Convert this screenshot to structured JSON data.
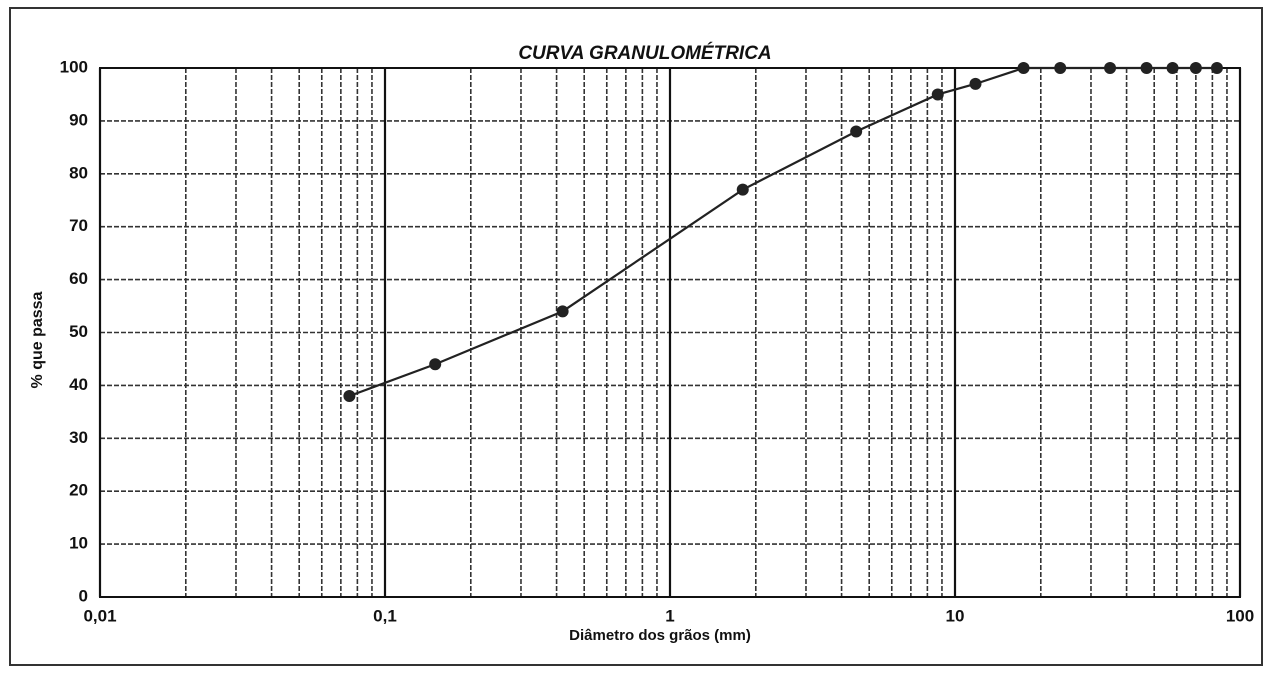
{
  "chart_data": {
    "type": "line",
    "title": "CURVA GRANULOMÉTRICA",
    "xlabel": "Diâmetro dos grãos (mm)",
    "ylabel": "% que passa",
    "x": [
      0.075,
      0.15,
      0.42,
      1.8,
      4.5,
      8.7,
      11.8,
      17.4,
      23.4,
      35,
      47,
      58,
      70,
      83
    ],
    "values": [
      38,
      44,
      54,
      77,
      88,
      95,
      97,
      100,
      100,
      100,
      100,
      100,
      100,
      100
    ],
    "color": "#222222",
    "xscale": "log",
    "grid": true,
    "xlim": [
      0.01,
      100
    ],
    "xticks": [
      {
        "value": 0.01,
        "label": "0,01"
      },
      {
        "value": 0.1,
        "label": "0,1"
      },
      1,
      10,
      100
    ],
    "ylim": [
      0,
      100
    ],
    "yticks": [
      0,
      10,
      20,
      30,
      40,
      50,
      60,
      70,
      80,
      90,
      100
    ]
  }
}
